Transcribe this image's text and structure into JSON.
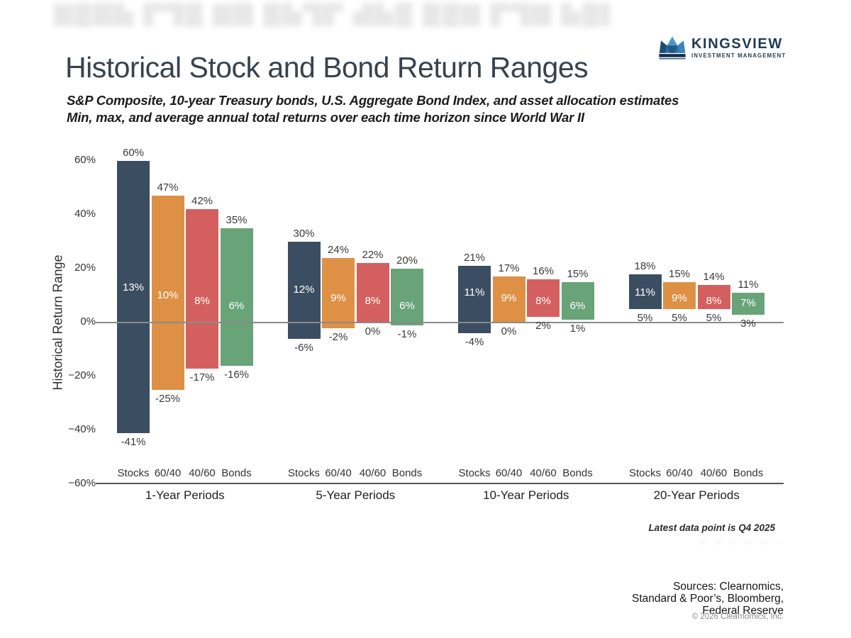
{
  "artifacts": {
    "ghost_header": "▆█▇▙ ▛▜█ ▆▇ █▙▜▛ ▟▙█ ██▆ ▛▜▆ ▙█▇ ▟▛█ ▆▇█▙ ▜▛ █▆▇ ▙▟█ ▛█ ▆▇▙ ██ ▜▛▆ █▇",
    "ghost_footer": "— —  — —  — —"
  },
  "header": {
    "title": "Historical Stock and Bond Return Ranges",
    "subtitle_line1": "S&P Composite, 10-year Treasury bonds, U.S. Aggregate Bond Index, and asset allocation estimates",
    "subtitle_line2": "Min, max, and average annual total returns over each time horizon since World War II",
    "logo": {
      "name": "KINGSVIEW",
      "tagline": "INVESTMENT MANAGEMENT",
      "navy": "#1d3a54",
      "crown_blues": [
        "#132f48",
        "#1c4f75",
        "#2c72a3",
        "#4798c9",
        "#3d86b5"
      ]
    }
  },
  "chart_data": {
    "type": "bar",
    "variant": "floating-range-bars (min-to-max with average label)",
    "title": "Historical Stock and Bond Return Ranges",
    "xlabel": "",
    "ylabel": "Historical Return Range",
    "ylim": [
      -60,
      65
    ],
    "grid": "zero-line-and-baseline-only",
    "legend_position": "none",
    "ytick_labels": [
      "60%",
      "40%",
      "20%",
      "0%",
      "−20%",
      "−40%",
      "−60%"
    ],
    "ytick_values": [
      60,
      40,
      20,
      0,
      -20,
      -40,
      -60
    ],
    "categories": [
      "Stocks",
      "60/40",
      "40/60",
      "Bonds"
    ],
    "series_colors": {
      "Stocks": "#3b4d60",
      "60/40": "#de9045",
      "40/60": "#d3605f",
      "Bonds": "#69a378"
    },
    "groups": [
      {
        "label": "1-Year Periods",
        "bars": [
          {
            "category": "Stocks",
            "max": 60,
            "avg": 13,
            "min": -41
          },
          {
            "category": "60/40",
            "max": 47,
            "avg": 10,
            "min": -25
          },
          {
            "category": "40/60",
            "max": 42,
            "avg": 8,
            "min": -17
          },
          {
            "category": "Bonds",
            "max": 35,
            "avg": 6,
            "min": -16
          }
        ]
      },
      {
        "label": "5-Year Periods",
        "bars": [
          {
            "category": "Stocks",
            "max": 30,
            "avg": 12,
            "min": -6
          },
          {
            "category": "60/40",
            "max": 24,
            "avg": 9,
            "min": -2
          },
          {
            "category": "40/60",
            "max": 22,
            "avg": 8,
            "min": 0
          },
          {
            "category": "Bonds",
            "max": 20,
            "avg": 6,
            "min": -1
          }
        ]
      },
      {
        "label": "10-Year Periods",
        "bars": [
          {
            "category": "Stocks",
            "max": 21,
            "avg": 11,
            "min": -4
          },
          {
            "category": "60/40",
            "max": 17,
            "avg": 9,
            "min": 0
          },
          {
            "category": "40/60",
            "max": 16,
            "avg": 8,
            "min": 2
          },
          {
            "category": "Bonds",
            "max": 15,
            "avg": 6,
            "min": 1
          }
        ]
      },
      {
        "label": "20-Year Periods",
        "bars": [
          {
            "category": "Stocks",
            "max": 18,
            "avg": 11,
            "min": 5
          },
          {
            "category": "60/40",
            "max": 15,
            "avg": 9,
            "min": 5
          },
          {
            "category": "40/60",
            "max": 14,
            "avg": 8,
            "min": 5
          },
          {
            "category": "Bonds",
            "max": 11,
            "avg": 7,
            "min": 3
          }
        ]
      }
    ]
  },
  "footer": {
    "latest_note": "Latest data point is Q4 2025",
    "sources_line1": "Sources: Clearnomics,",
    "sources_line2": "Standard & Poor’s, Bloomberg,",
    "sources_line3": "Federal Reserve",
    "copyright": "© 2026 Clearnomics, Inc."
  }
}
